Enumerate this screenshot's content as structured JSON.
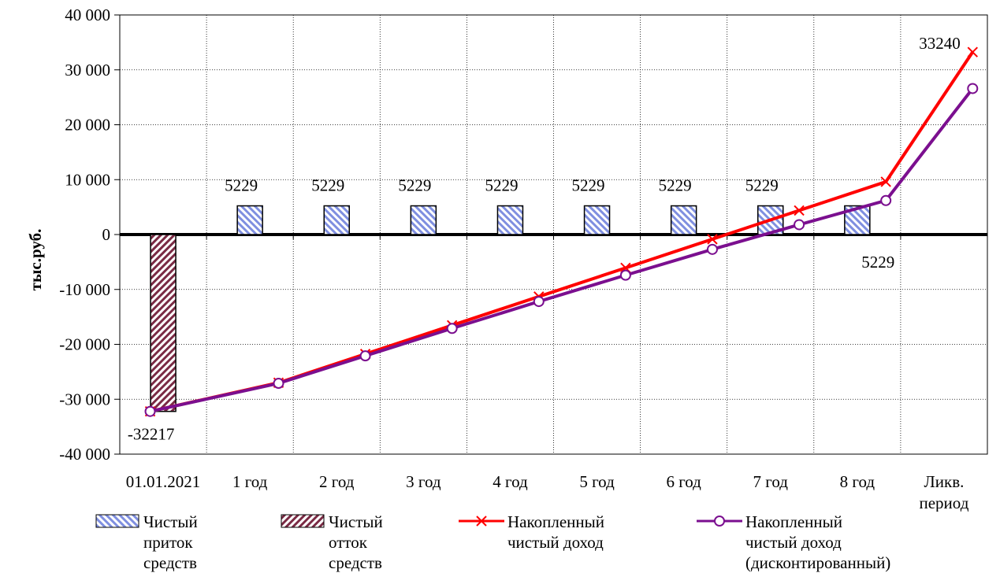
{
  "chart_data": {
    "type": "bar+line",
    "title": "",
    "ylabel": "тыс.руб.",
    "ylim": [
      -40000,
      40000
    ],
    "yticks": [
      40000,
      30000,
      20000,
      10000,
      0,
      -10000,
      -20000,
      -30000,
      -40000
    ],
    "ytick_labels": [
      "40 000",
      "30 000",
      "20 000",
      "10 000",
      "0",
      "-10 000",
      "-20 000",
      "-30 000",
      "-40 000"
    ],
    "categories": [
      "01.01.2021",
      "1 год",
      "2 год",
      "3 год",
      "4 год",
      "5 год",
      "6 год",
      "7 год",
      "8 год",
      "Ликв. период"
    ],
    "grid": true,
    "legend_position": "bottom",
    "series": [
      {
        "name": "Чистый приток средств",
        "type": "bar",
        "color": "#9aa8e6",
        "values": [
          null,
          5229,
          5229,
          5229,
          5229,
          5229,
          5229,
          5229,
          5229,
          null
        ]
      },
      {
        "name": "Чистый отток средств",
        "type": "bar",
        "color": "#8a3a52",
        "values": [
          -32217,
          null,
          null,
          null,
          null,
          null,
          null,
          null,
          null,
          null
        ]
      },
      {
        "name": "Накопленный чистый доход",
        "type": "line",
        "color": "#ff0000",
        "marker": "x",
        "values": [
          -32217,
          -26988,
          -21759,
          -16530,
          -11301,
          -6072,
          -843,
          4386,
          9615,
          33240
        ]
      },
      {
        "name": "Накопленный чистый доход (дисконтированный)",
        "type": "line",
        "color": "#7b0f8f",
        "marker": "o",
        "values": [
          -32217,
          -27100,
          -22100,
          -17100,
          -12200,
          -7400,
          -2700,
          1800,
          6200,
          26600
        ]
      }
    ],
    "data_labels": [
      {
        "category": "01.01.2021",
        "text": "-32217"
      },
      {
        "category": "1 год",
        "text": "5229"
      },
      {
        "category": "2 год",
        "text": "5229"
      },
      {
        "category": "3 год",
        "text": "5229"
      },
      {
        "category": "4 год",
        "text": "5229"
      },
      {
        "category": "5 год",
        "text": "5229"
      },
      {
        "category": "6 год",
        "text": "5229"
      },
      {
        "category": "7 год",
        "text": "5229"
      },
      {
        "category": "8 год",
        "text": "5229"
      },
      {
        "category": "Ликв. период",
        "text": "33240"
      }
    ]
  },
  "legend": [
    {
      "label": "Чистый\nприток\nсредств"
    },
    {
      "label": "Чистый\nотток\nсредств"
    },
    {
      "label": "Накопленный\nчистый доход"
    },
    {
      "label": "Накопленный\nчистый доход\n(дисконтированный)"
    }
  ]
}
